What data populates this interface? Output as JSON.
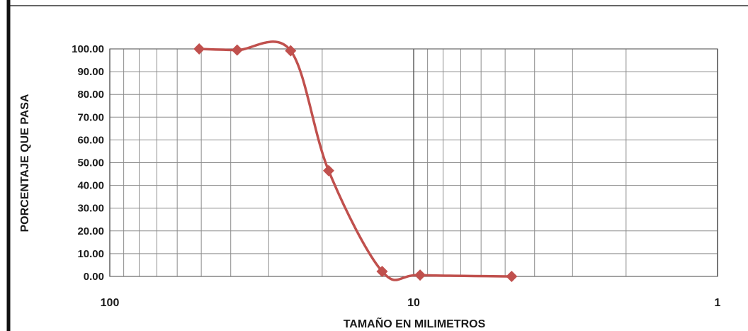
{
  "chart_data": {
    "type": "line",
    "title": "",
    "xlabel": "TAMAÑO EN MILIMETROS",
    "ylabel": "PORCENTAJE  QUE  PASA",
    "x_scale": "log",
    "x_reversed": true,
    "xlim": [
      100,
      1
    ],
    "ylim": [
      0,
      100
    ],
    "x_tick_labels": [
      "100",
      "10",
      "1"
    ],
    "x_tick_values": [
      100,
      10,
      1
    ],
    "y_tick_labels": [
      "0.00",
      "10.00",
      "20.00",
      "30.00",
      "40.00",
      "50.00",
      "60.00",
      "70.00",
      "80.00",
      "90.00",
      "100.00"
    ],
    "grid": true,
    "legend": "none",
    "series": [
      {
        "color": "#c0504d",
        "marker": "diamond",
        "smooth": true,
        "points": [
          {
            "x": 50.8,
            "y": 100.0
          },
          {
            "x": 38.1,
            "y": 99.5
          },
          {
            "x": 25.4,
            "y": 99.2
          },
          {
            "x": 19.05,
            "y": 46.5
          },
          {
            "x": 12.7,
            "y": 2.2
          },
          {
            "x": 9.525,
            "y": 0.6
          },
          {
            "x": 4.76,
            "y": 0.0
          }
        ]
      }
    ]
  }
}
